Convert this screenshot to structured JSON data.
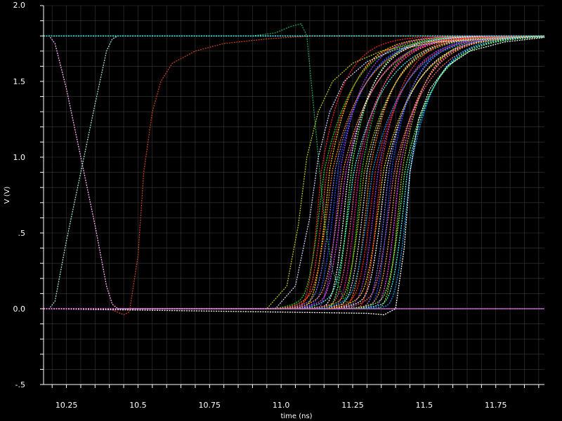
{
  "chart_data": {
    "type": "line",
    "title": "",
    "xlabel": "time (ns)",
    "ylabel": "V (V)",
    "xlim": [
      10.17,
      11.92
    ],
    "ylim": [
      -0.5,
      2.0
    ],
    "xticks": [
      {
        "value": 10.25,
        "label": "10.25"
      },
      {
        "value": 10.5,
        "label": "10.5"
      },
      {
        "value": 10.75,
        "label": "10.75"
      },
      {
        "value": 11.0,
        "label": "11.0"
      },
      {
        "value": 11.25,
        "label": "11.25"
      },
      {
        "value": 11.5,
        "label": "11.5"
      },
      {
        "value": 11.75,
        "label": "11.75"
      }
    ],
    "yticks": [
      {
        "value": -0.5,
        "label": "-.5"
      },
      {
        "value": 0.0,
        "label": "0.0"
      },
      {
        "value": 0.5,
        "label": ".5"
      },
      {
        "value": 1.0,
        "label": "1.0"
      },
      {
        "value": 1.5,
        "label": "1.5"
      },
      {
        "value": 2.0,
        "label": "2.0"
      }
    ],
    "grid": true,
    "colors": {
      "background": "#000000",
      "grid": "#3a3a3a",
      "axis": "#ffffff",
      "curve_palette": [
        "#ff2020",
        "#ffd000",
        "#2050ff",
        "#ff40ff",
        "#40ffff",
        "#20d020",
        "#ff8000",
        "#a040ff",
        "#ffffff",
        "#ff6080",
        "#c0c000",
        "#00a0ff",
        "#ff3030",
        "#8080ff",
        "#ffa040",
        "#60ff60",
        "#ff00a0",
        "#e0e0e0"
      ]
    },
    "series": [
      {
        "color": "#ffb0ff",
        "x": [
          10.17,
          10.19,
          10.21,
          10.25,
          10.3,
          10.35,
          10.39,
          10.41,
          10.43,
          11.92
        ],
        "y": [
          1.8,
          1.8,
          1.75,
          1.45,
          1.0,
          0.55,
          0.15,
          0.03,
          0.0,
          0.0
        ]
      },
      {
        "color": "#a0e0d0",
        "x": [
          10.17,
          10.19,
          10.21,
          10.25,
          10.3,
          10.35,
          10.39,
          10.41,
          10.43,
          11.92
        ],
        "y": [
          0.0,
          0.0,
          0.05,
          0.45,
          0.9,
          1.35,
          1.7,
          1.78,
          1.8,
          1.8
        ]
      },
      {
        "color": "#c04020",
        "x": [
          10.17,
          10.4,
          10.45,
          10.47,
          10.5,
          10.52,
          10.55,
          10.58,
          10.62,
          10.7,
          10.8,
          10.95,
          11.1,
          11.92
        ],
        "y": [
          0.0,
          0.0,
          -0.04,
          -0.02,
          0.35,
          0.9,
          1.3,
          1.5,
          1.62,
          1.7,
          1.75,
          1.78,
          1.8,
          1.8
        ]
      },
      {
        "color": "#20a060",
        "x": [
          10.17,
          10.9,
          10.98,
          11.03,
          11.07,
          11.09,
          11.12,
          11.15,
          11.18,
          11.22,
          11.26,
          11.92
        ],
        "y": [
          1.8,
          1.8,
          1.82,
          1.86,
          1.88,
          1.8,
          1.2,
          0.6,
          0.25,
          0.06,
          0.0,
          0.0
        ]
      },
      {
        "color": "#c0c020",
        "x": [
          10.17,
          10.95,
          11.02,
          11.06,
          11.09,
          11.13,
          11.18,
          11.25,
          11.35,
          11.5,
          11.92
        ],
        "y": [
          0.0,
          0.0,
          0.15,
          0.55,
          1.0,
          1.3,
          1.5,
          1.62,
          1.7,
          1.76,
          1.8
        ]
      },
      {
        "color": "#d0d0ff",
        "x": [
          10.17,
          10.98,
          11.05,
          11.1,
          11.13,
          11.17,
          11.22,
          11.3,
          11.4,
          11.55,
          11.92
        ],
        "y": [
          0.0,
          0.0,
          0.15,
          0.6,
          1.0,
          1.3,
          1.5,
          1.63,
          1.71,
          1.76,
          1.8
        ]
      },
      {
        "color": "#ffffff",
        "x": [
          10.17,
          11.3,
          11.36,
          11.4,
          11.43,
          11.45,
          11.48,
          11.52,
          11.58,
          11.66,
          11.78,
          11.92
        ],
        "y": [
          0.0,
          -0.03,
          -0.04,
          0.0,
          0.4,
          0.9,
          1.25,
          1.45,
          1.6,
          1.7,
          1.76,
          1.79
        ]
      },
      {
        "color": "#40ffff",
        "x": [
          10.17,
          10.42,
          11.92
        ],
        "y": [
          1.8,
          1.8,
          1.8
        ]
      },
      {
        "color": "#ff40ff",
        "x": [
          10.17,
          10.44,
          11.92
        ],
        "y": [
          0.0,
          0.0,
          0.0
        ]
      }
    ],
    "bundle": {
      "count": 34,
      "t_start": 11.14,
      "t_end": 11.45,
      "v_low": 0.0,
      "v_high": 1.8,
      "undershoot": -0.05
    }
  }
}
